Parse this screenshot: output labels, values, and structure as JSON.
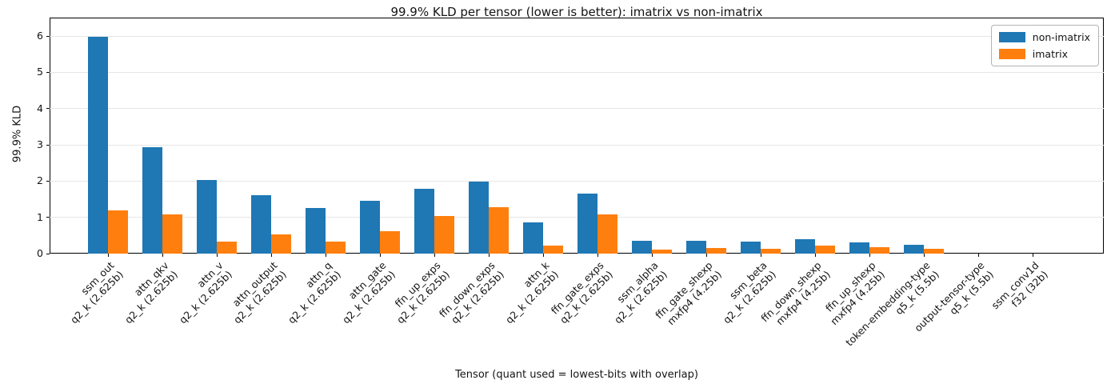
{
  "chart_data": {
    "type": "bar",
    "title": "99.9% KLD per tensor (lower is better): imatrix vs non-imatrix",
    "xlabel": "Tensor (quant used = lowest-bits with overlap)",
    "ylabel": "99.9% KLD",
    "ylim": [
      0,
      6.5
    ],
    "yticks": [
      0,
      1,
      2,
      3,
      4,
      5,
      6
    ],
    "grid": true,
    "legend_position": "upper right",
    "categories": [
      "ssm_out",
      "attn_qkv",
      "attn_v",
      "attn_output",
      "attn_q",
      "attn_gate",
      "ffn_up_exps",
      "ffn_down_exps",
      "attn_k",
      "ffn_gate_exps",
      "ssm_alpha",
      "ffn_gate_shexp",
      "ssm_beta",
      "ffn_down_shexp",
      "ffn_up_shexp",
      "token-embedding-type",
      "output-tensor-type",
      "ssm_conv1d"
    ],
    "quants": [
      "q2_k (2.625b)",
      "q2_k (2.625b)",
      "q2_k (2.625b)",
      "q2_k (2.625b)",
      "q2_k (2.625b)",
      "q2_k (2.625b)",
      "q2_k (2.625b)",
      "q2_k (2.625b)",
      "q2_k (2.625b)",
      "q2_k (2.625b)",
      "q2_k (2.625b)",
      "mxfp4 (4.25b)",
      "q2_k (2.625b)",
      "mxfp4 (4.25b)",
      "mxfp4 (4.25b)",
      "q5_k (5.5b)",
      "q5_k (5.5b)",
      "f32 (32b)"
    ],
    "series": [
      {
        "name": "non-imatrix",
        "color": "#1f77b4",
        "values": [
          5.98,
          2.93,
          2.02,
          1.62,
          1.26,
          1.46,
          1.78,
          1.98,
          0.85,
          1.65,
          0.35,
          0.35,
          0.32,
          0.39,
          0.3,
          0.25,
          0.0,
          0.0
        ]
      },
      {
        "name": "imatrix",
        "color": "#ff7f0e",
        "values": [
          1.19,
          1.08,
          0.34,
          0.54,
          0.32,
          0.62,
          1.04,
          1.28,
          0.22,
          1.08,
          0.12,
          0.15,
          0.14,
          0.23,
          0.17,
          0.13,
          0.0,
          0.0
        ]
      }
    ]
  }
}
